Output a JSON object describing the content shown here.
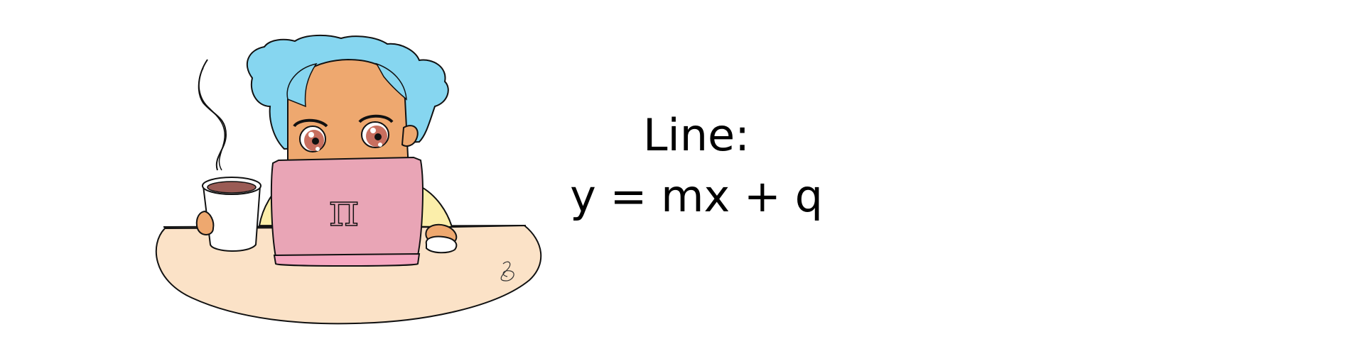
{
  "caption": {
    "title": "Line:",
    "equation": "y = mx + q"
  },
  "illustration": {
    "laptop_symbol": "π"
  },
  "colors": {
    "hair": "#86d6f0",
    "skin": "#eea86f",
    "laptop": "#e9a5b6",
    "laptop_base": "#f5a7c0",
    "table": "#fbe2c7",
    "shirt": "#fbeeaa",
    "coffee": "#9a5b55",
    "ink": "#111111"
  }
}
